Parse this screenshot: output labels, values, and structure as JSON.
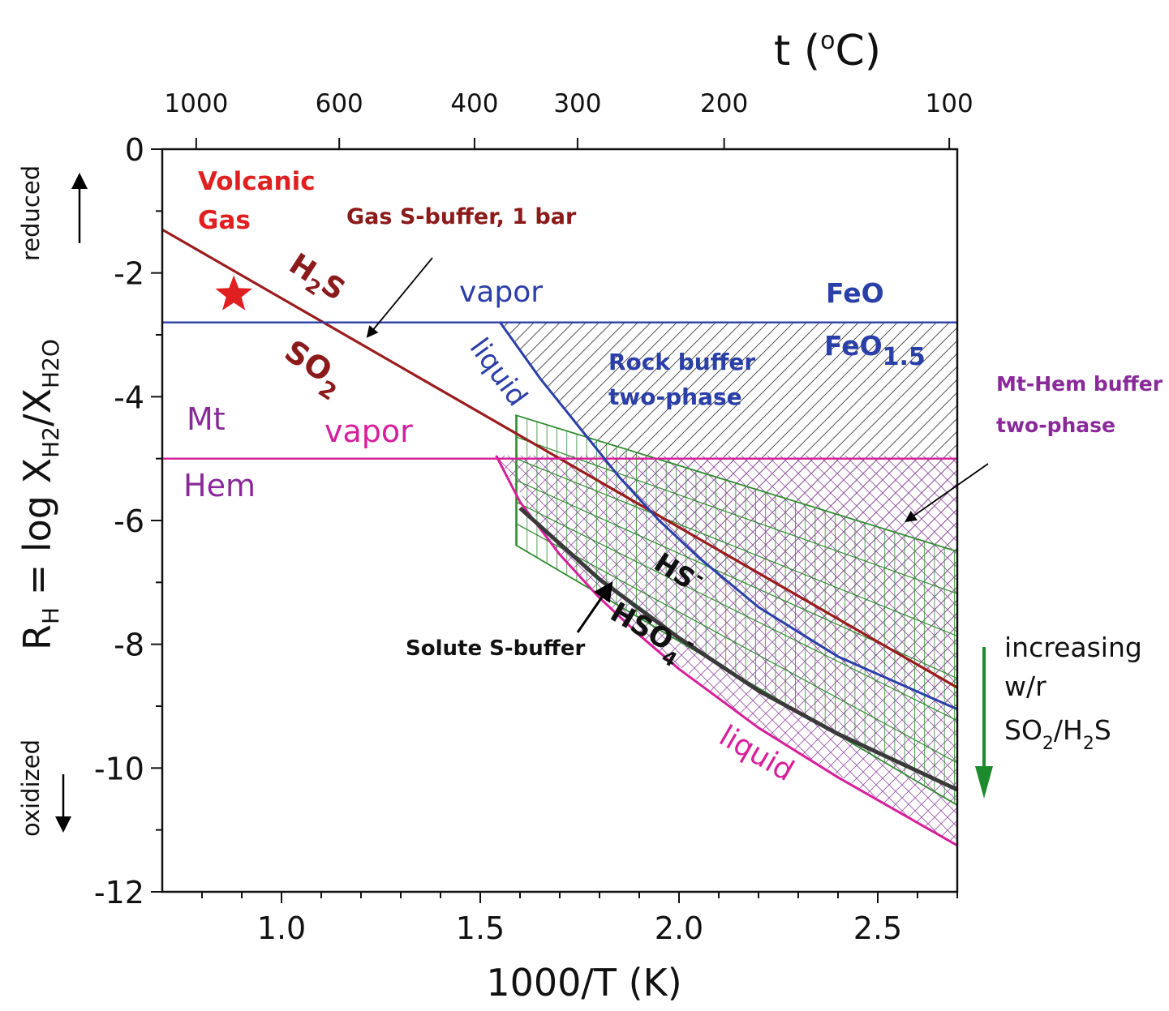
{
  "chart_data": {
    "type": "line",
    "xlabel": "1000/T (K)",
    "ylabel": {
      "base": "R",
      "base_sub": "H",
      "mid": " = log X",
      "sub1": "H2",
      "slash": "/X",
      "sub2": "H2O"
    },
    "top_axis": {
      "title_pre": "t (",
      "title_sup": "o",
      "title_post": "C)"
    },
    "x_range": [
      0.7,
      2.7
    ],
    "y_range": [
      -12,
      0
    ],
    "x_ticks": [
      1.0,
      1.5,
      2.0,
      2.5
    ],
    "x_tick_labels": [
      "1.0",
      "1.5",
      "2.0",
      "2.5"
    ],
    "y_ticks": [
      0,
      -2,
      -4,
      -6,
      -8,
      -10,
      -12
    ],
    "y_tick_labels": [
      "0",
      "-2",
      "-4",
      "-6",
      "-8",
      "-10",
      "-12"
    ],
    "top_ticks_celsius": [
      1000,
      600,
      400,
      300,
      200,
      100
    ],
    "top_tick_labels": [
      "1000",
      "600",
      "400",
      "300",
      "200",
      "100"
    ],
    "series": [
      {
        "key": "gas_s_buffer",
        "color": "#9b1c1c",
        "x": [
          0.7,
          2.7
        ],
        "y": [
          -1.3,
          -8.7
        ]
      },
      {
        "key": "feo_buffer",
        "color": "#2b3fa8",
        "x": [
          0.7,
          2.7
        ],
        "y": [
          -2.8,
          -2.8
        ]
      },
      {
        "key": "mt_hem_buffer",
        "color": "#d61f9a",
        "x": [
          0.7,
          2.7
        ],
        "y": [
          -5.0,
          -5.0
        ]
      },
      {
        "key": "rock_liquid",
        "color": "#2b3fa8",
        "x": [
          1.55,
          1.65,
          1.75,
          1.85,
          1.95,
          2.05,
          2.2,
          2.4,
          2.7
        ],
        "y": [
          -2.8,
          -3.7,
          -4.5,
          -5.3,
          -6.0,
          -6.6,
          -7.4,
          -8.2,
          -9.05
        ]
      },
      {
        "key": "mthem_liquid",
        "color": "#d61f9a",
        "x": [
          1.54,
          1.6,
          1.7,
          1.8,
          1.9,
          2.0,
          2.2,
          2.4,
          2.7
        ],
        "y": [
          -4.95,
          -5.7,
          -6.55,
          -7.25,
          -7.85,
          -8.4,
          -9.35,
          -10.15,
          -11.25
        ]
      },
      {
        "key": "solute_s_buffer",
        "color": "#3a3a3a",
        "x": [
          1.6,
          1.8,
          2.0,
          2.2,
          2.4,
          2.7
        ],
        "y": [
          -5.8,
          -6.95,
          -7.9,
          -8.75,
          -9.45,
          -10.35
        ]
      }
    ],
    "regions": [
      {
        "key": "rock_two_phase",
        "pattern": "diagonal hatch (black)",
        "x": [
          1.55,
          2.7,
          2.7,
          2.05,
          1.95,
          1.85,
          1.75,
          1.65
        ],
        "y": [
          -2.8,
          -2.8,
          -9.05,
          -6.6,
          -6.0,
          -5.3,
          -4.5,
          -3.7
        ]
      },
      {
        "key": "mt_hem_two_phase",
        "pattern": "cross hatch (purple)",
        "x": [
          1.54,
          2.7,
          2.7,
          2.2,
          1.9,
          1.7
        ],
        "y": [
          -4.95,
          -4.95,
          -11.25,
          -9.35,
          -7.85,
          -6.55
        ]
      },
      {
        "key": "solute_region",
        "pattern": "green grid",
        "x": [
          1.59,
          2.7,
          2.7,
          1.59
        ],
        "y": [
          -4.3,
          -6.5,
          -10.6,
          -6.4
        ]
      }
    ],
    "marker": {
      "type": "star",
      "color": "#e02020",
      "x": 0.88,
      "y": -2.35
    },
    "arrow": {
      "label": "increasing",
      "lines": [
        "increasing",
        "w/r"
      ],
      "ratio": {
        "a": "SO",
        "a_sub": "2",
        "slash": "/H",
        "b_sub": "2",
        "b_post": "S"
      },
      "color": "#1d8a2e"
    },
    "annotations": {
      "volcanic_gas": [
        "Volcanic",
        "Gas"
      ],
      "gas_s_buffer": "Gas S-buffer, 1 bar",
      "h2s": {
        "a": "H",
        "sub": "2",
        "b": "S"
      },
      "so2": {
        "a": "SO",
        "sub": "2"
      },
      "vapor_blue": "vapor",
      "liquid_blue": "liquid",
      "feo": "FeO",
      "feo15": {
        "a": "FeO",
        "sub": "1.5"
      },
      "rock_buffer": [
        "Rock buffer",
        "two-phase"
      ],
      "mt_hem_buffer": [
        "Mt-Hem buffer",
        "two-phase"
      ],
      "mt": "Mt",
      "hem": "Hem",
      "vapor_pink": "vapor",
      "liquid_pink": "liquid",
      "hs": {
        "a": "HS",
        "sup": "-"
      },
      "hso4": {
        "a": "HSO",
        "sub": "4",
        "sup": "-"
      },
      "solute_s_buffer": "Solute S-buffer",
      "reduced": "reduced",
      "oxidized": "oxidized"
    }
  }
}
